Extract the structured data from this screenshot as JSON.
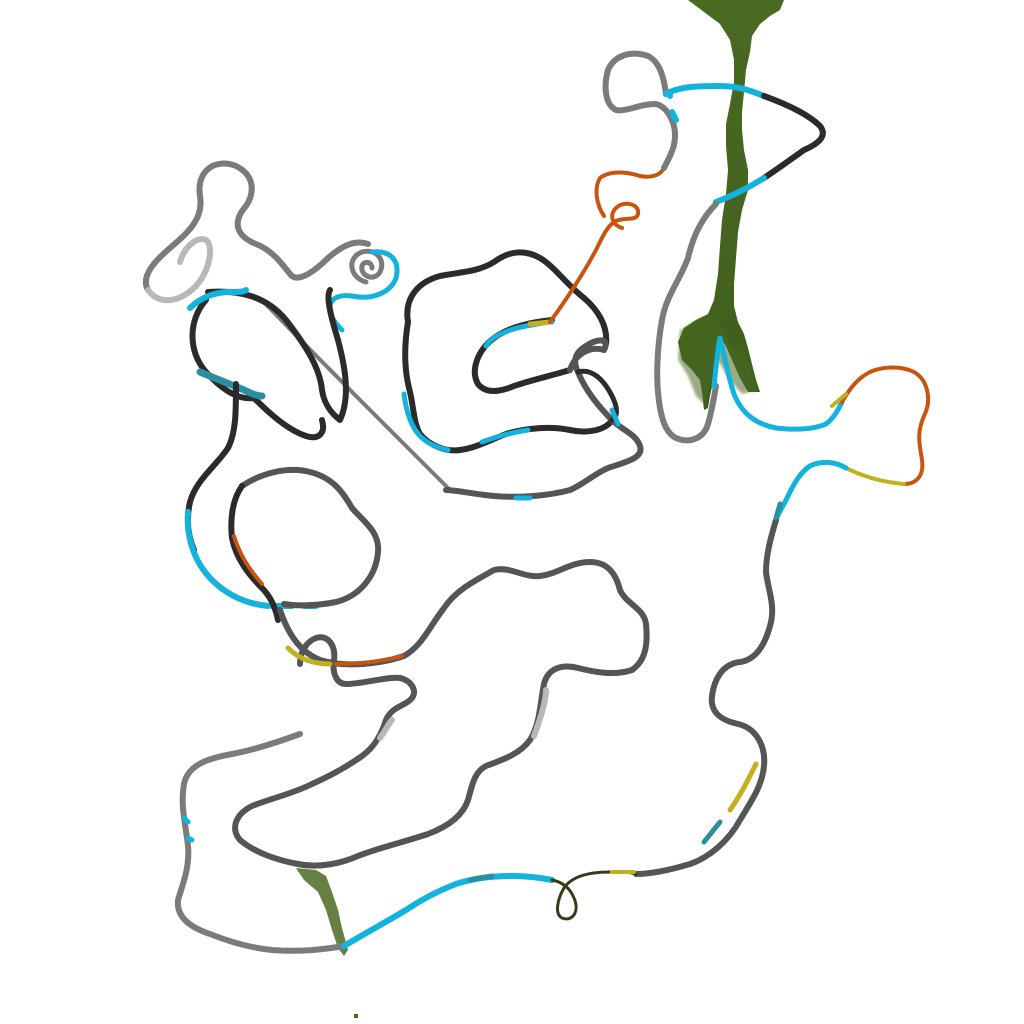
{
  "map": {
    "colors": {
      "background": "#ffffff",
      "river": "#4a6a22",
      "route_dark": "#2b2b2b",
      "route_mid": "#7b7b7b",
      "route_light": "#b8b8b8",
      "route_cyan": "#12b3dc",
      "route_orange": "#c9540d",
      "route_yellow": "#c2b11f",
      "route_olive": "#8f8a1a",
      "route_teal": "#2a8fa0"
    },
    "legend": [],
    "labels": []
  }
}
